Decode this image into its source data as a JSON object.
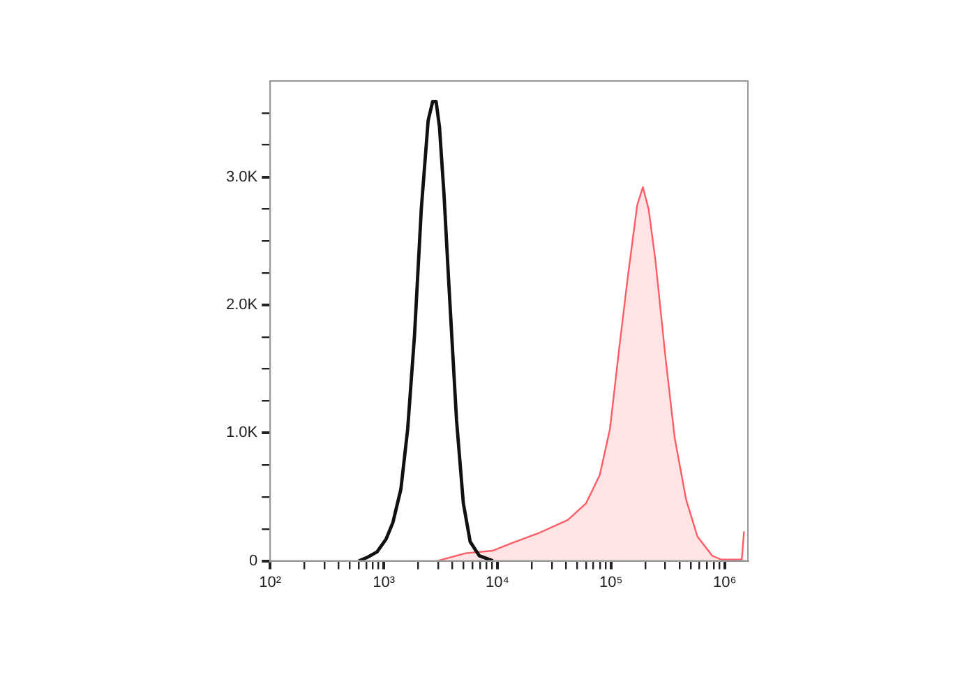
{
  "chart_data": {
    "type": "line",
    "log": "x",
    "grid": false,
    "legend": false,
    "marker": "none",
    "line_style": "solid",
    "xlim": [
      100,
      1600000
    ],
    "xticks": [
      {
        "value": 100,
        "label": "10²"
      },
      {
        "value": 200,
        "label": null
      },
      {
        "value": 300,
        "label": null
      },
      {
        "value": 400,
        "label": null
      },
      {
        "value": 500,
        "label": null
      },
      {
        "value": 600,
        "label": null
      },
      {
        "value": 700,
        "label": null
      },
      {
        "value": 800,
        "label": null
      },
      {
        "value": 900,
        "label": null
      },
      {
        "value": 1000,
        "label": "10³"
      },
      {
        "value": 2000,
        "label": null
      },
      {
        "value": 3000,
        "label": null
      },
      {
        "value": 4000,
        "label": null
      },
      {
        "value": 5000,
        "label": null
      },
      {
        "value": 6000,
        "label": null
      },
      {
        "value": 7000,
        "label": null
      },
      {
        "value": 8000,
        "label": null
      },
      {
        "value": 9000,
        "label": null
      },
      {
        "value": 10000,
        "label": "10⁴"
      },
      {
        "value": 20000,
        "label": null
      },
      {
        "value": 30000,
        "label": null
      },
      {
        "value": 40000,
        "label": null
      },
      {
        "value": 50000,
        "label": null
      },
      {
        "value": 60000,
        "label": null
      },
      {
        "value": 70000,
        "label": null
      },
      {
        "value": 80000,
        "label": null
      },
      {
        "value": 90000,
        "label": null
      },
      {
        "value": 100000,
        "label": "10⁵"
      },
      {
        "value": 200000,
        "label": null
      },
      {
        "value": 300000,
        "label": null
      },
      {
        "value": 400000,
        "label": null
      },
      {
        "value": 500000,
        "label": null
      },
      {
        "value": 600000,
        "label": null
      },
      {
        "value": 700000,
        "label": null
      },
      {
        "value": 800000,
        "label": null
      },
      {
        "value": 900000,
        "label": null
      },
      {
        "value": 1000000,
        "label": "10⁶"
      }
    ],
    "ylim": [
      0,
      3750
    ],
    "yticks": [
      {
        "value": 0,
        "label": "0"
      },
      {
        "value": 250,
        "label": null
      },
      {
        "value": 500,
        "label": null
      },
      {
        "value": 750,
        "label": null
      },
      {
        "value": 1000,
        "label": "1.0K"
      },
      {
        "value": 1250,
        "label": null
      },
      {
        "value": 1500,
        "label": null
      },
      {
        "value": 1750,
        "label": null
      },
      {
        "value": 2000,
        "label": "2.0K"
      },
      {
        "value": 2250,
        "label": null
      },
      {
        "value": 2500,
        "label": null
      },
      {
        "value": 2750,
        "label": null
      },
      {
        "value": 3000,
        "label": "3.0K"
      },
      {
        "value": 3250,
        "label": null
      },
      {
        "value": 3500,
        "label": null
      }
    ],
    "series": [
      {
        "type": "line",
        "color": "#111111",
        "x": [
          603,
          724,
          871,
          1047,
          1202,
          1413,
          1622,
          1862,
          2138,
          2455,
          2692,
          2884,
          3090,
          3388,
          3715,
          4365,
          5012,
          5754,
          6918,
          9120
        ],
        "values": [
          0,
          30,
          70,
          170,
          300,
          560,
          1030,
          1760,
          2750,
          3440,
          3590,
          3590,
          3390,
          2860,
          2200,
          1100,
          450,
          150,
          40,
          0
        ]
      },
      {
        "type": "area",
        "color": "#ff5c66",
        "x": [
          2951,
          5248,
          9120,
          13490,
          23440,
          41690,
          60260,
          79430,
          97720,
          117500,
          141300,
          169800,
          190500,
          213800,
          245500,
          302000,
          363100,
          457100,
          575400,
          776200,
          933300,
          1413000,
          1479000
        ],
        "values": [
          0,
          60,
          80,
          140,
          220,
          320,
          450,
          670,
          1030,
          1650,
          2240,
          2780,
          2920,
          2750,
          2350,
          1580,
          960,
          480,
          190,
          40,
          10,
          10,
          230
        ]
      }
    ]
  }
}
